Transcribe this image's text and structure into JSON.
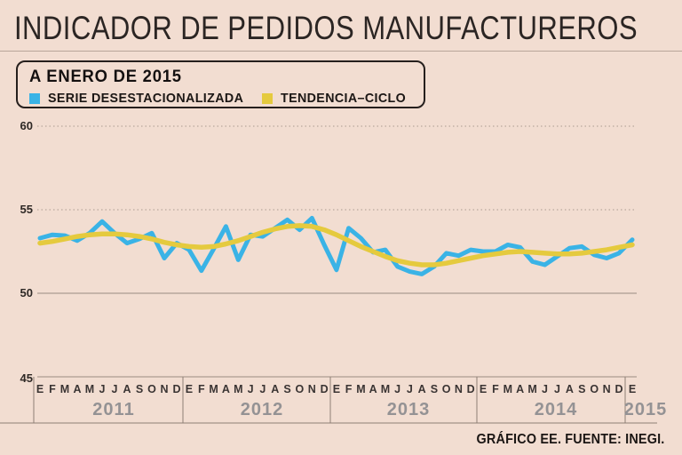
{
  "page": {
    "title": "INDICADOR DE PEDIDOS MANUFACTUREROS",
    "footer": "GRÁFICO EE. FUENTE: INEGI."
  },
  "legend": {
    "title": "A ENERO DE 2015",
    "items": [
      {
        "label": "SERIE DESESTACIONALIZADA",
        "color": "#3ab3e6"
      },
      {
        "label": "TENDENCIA–CICLO",
        "color": "#e5ca3e"
      }
    ]
  },
  "chart_data": {
    "type": "line",
    "title": "INDICADOR DE PEDIDOS MANUFACTUREROS",
    "subtitle": "A ENERO DE 2015",
    "xlabel": "",
    "ylabel": "",
    "ylim": [
      45,
      60
    ],
    "y_ticks": [
      60,
      55,
      50,
      45
    ],
    "y_tick_labels": [
      "60",
      "55",
      "50",
      "45"
    ],
    "grid": "horizontal-dotted",
    "legend_position": "top-left-box",
    "month_letters": [
      "E",
      "F",
      "M",
      "A",
      "M",
      "J",
      "J",
      "A",
      "S",
      "O",
      "N",
      "D"
    ],
    "years": [
      "2011",
      "2012",
      "2013",
      "2014",
      "2015"
    ],
    "months_per_year": [
      12,
      12,
      12,
      12,
      1
    ],
    "x_range": "Enero 2011 – Enero 2015",
    "series": [
      {
        "name": "SERIE DESESTACIONALIZADA",
        "color": "#3ab3e6",
        "values": [
          53.3,
          53.5,
          53.45,
          53.15,
          53.6,
          54.3,
          53.6,
          53.0,
          53.25,
          53.6,
          52.1,
          53.0,
          52.6,
          51.35,
          52.65,
          54.0,
          52.0,
          53.5,
          53.4,
          53.9,
          54.4,
          53.8,
          54.5,
          52.9,
          51.4,
          53.9,
          53.3,
          52.45,
          52.6,
          51.6,
          51.3,
          51.15,
          51.6,
          52.4,
          52.25,
          52.6,
          52.5,
          52.5,
          52.9,
          52.75,
          51.9,
          51.7,
          52.2,
          52.7,
          52.8,
          52.3,
          52.1,
          52.4,
          53.2
        ]
      },
      {
        "name": "TENDENCIA–CICLO",
        "color": "#e5ca3e",
        "values": [
          53.0,
          53.1,
          53.25,
          53.4,
          53.5,
          53.55,
          53.55,
          53.5,
          53.4,
          53.25,
          53.05,
          52.9,
          52.8,
          52.75,
          52.8,
          52.95,
          53.15,
          53.4,
          53.65,
          53.85,
          54.0,
          54.05,
          54.0,
          53.8,
          53.5,
          53.15,
          52.8,
          52.5,
          52.2,
          51.95,
          51.8,
          51.7,
          51.7,
          51.8,
          51.95,
          52.1,
          52.25,
          52.35,
          52.45,
          52.5,
          52.45,
          52.4,
          52.35,
          52.35,
          52.4,
          52.5,
          52.6,
          52.75,
          52.9
        ]
      }
    ]
  },
  "colors": {
    "background": "#f2ddd1",
    "serie_line": "#3ab3e6",
    "tendencia_line": "#e5ca3e",
    "grid_dotted": "#ab9b90",
    "grid_solid": "#9a8b81",
    "axis_rule": "#8d7f75",
    "month_label": "#3a3433",
    "year_label": "#949294"
  }
}
